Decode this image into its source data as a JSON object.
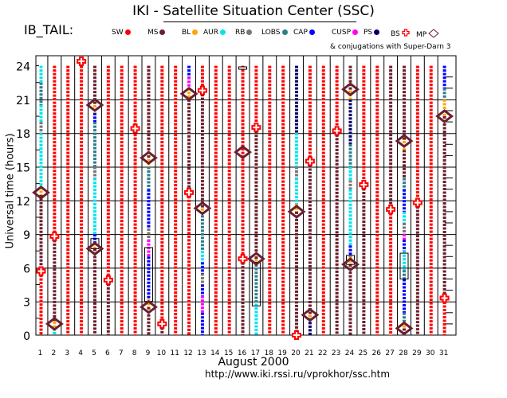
{
  "header": {
    "title": "IKI - Satellite Situation Center (SSC)",
    "series_label": "IB_TAIL:",
    "conjugation_note": "& conjugations with Super-Darn 3"
  },
  "legend": [
    {
      "label": "SW",
      "color": "#ff0000",
      "shape": "dot"
    },
    {
      "label": "MS",
      "color": "#6b1f2e",
      "shape": "dot"
    },
    {
      "label": "BL",
      "color": "#ffa500",
      "shape": "dot"
    },
    {
      "label": "AUR",
      "color": "#00e5ee",
      "shape": "dot"
    },
    {
      "label": "RB",
      "color": "#777777",
      "shape": "dot"
    },
    {
      "label": "LOBS",
      "color": "#2e7d8c",
      "shape": "dot"
    },
    {
      "label": "CAP",
      "color": "#0000ff",
      "shape": "dot"
    },
    {
      "label": "CUSP",
      "color": "#ff00ff",
      "shape": "dot"
    },
    {
      "label": "PS",
      "color": "#000066",
      "shape": "dot"
    },
    {
      "label": "BS",
      "color": "#ff0000",
      "shape": "cross"
    },
    {
      "label": "MP",
      "color": "#6b1f2e",
      "shape": "diamond"
    }
  ],
  "chart_data": {
    "type": "scatter",
    "title": "IKI - Satellite Situation Center (SSC)",
    "xlabel": "August   2000",
    "ylabel": "Universal time (hours)",
    "footer": "http://www.iki.rssi.ru/vprokhor/ssc.htm",
    "xlim": [
      1,
      31
    ],
    "ylim": [
      0,
      24
    ],
    "x_ticks": [
      "1",
      "2",
      "3",
      "4",
      "5",
      "6",
      "7",
      "8",
      "9",
      "10",
      "11",
      "12",
      "13",
      "14",
      "15",
      "16",
      "17",
      "18",
      "19",
      "20",
      "21",
      "22",
      "23",
      "24",
      "25",
      "26",
      "27",
      "28",
      "29",
      "30",
      "31"
    ],
    "y_ticks": [
      "0",
      "3",
      "6",
      "9",
      "12",
      "15",
      "18",
      "21",
      "24"
    ],
    "grid": true,
    "region_colors": {
      "SW": "#ff0000",
      "MS": "#6b1f2e",
      "BL": "#ffa500",
      "AUR": "#00e5ee",
      "RB": "#777777",
      "LOBS": "#2e7d8c",
      "CAP": "#0000ff",
      "CUSP": "#ff00ff",
      "PS": "#000066"
    },
    "days": [
      {
        "day": 1,
        "segments": [
          [
            "SW",
            0,
            5.7
          ],
          [
            "MS",
            5.7,
            12.5
          ],
          [
            "BL",
            12.5,
            13.2
          ],
          [
            "AUR",
            13.2,
            18
          ],
          [
            "RB",
            18,
            19
          ],
          [
            "AUR",
            19,
            20.5
          ],
          [
            "LOBS",
            20.5,
            22.5
          ],
          [
            "AUR",
            22.5,
            24
          ]
        ],
        "bs": [
          5.7
        ],
        "mp": [
          12.7
        ]
      },
      {
        "day": 2,
        "segments": [
          [
            "AUR",
            0,
            0.6
          ],
          [
            "BL",
            0.6,
            1.2
          ],
          [
            "MS",
            1.2,
            8.8
          ],
          [
            "SW",
            8.8,
            24
          ]
        ],
        "bs": [
          8.8
        ],
        "mp": [
          1
        ]
      },
      {
        "day": 3,
        "segments": [
          [
            "SW",
            0,
            24
          ]
        ],
        "bs": [],
        "mp": []
      },
      {
        "day": 4,
        "segments": [
          [
            "SW",
            0,
            24
          ]
        ],
        "bs": [
          24.4
        ],
        "mp": []
      },
      {
        "day": 5,
        "segments": [
          [
            "MS",
            0,
            7.7
          ],
          [
            "BL",
            7.7,
            8.2
          ],
          [
            "CAP",
            8.2,
            9
          ],
          [
            "AUR",
            9,
            14
          ],
          [
            "RB",
            14,
            15
          ],
          [
            "LOBS",
            15,
            19
          ],
          [
            "CAP",
            19,
            19.8
          ],
          [
            "BL",
            19.8,
            20.5
          ],
          [
            "MS",
            20.5,
            24
          ]
        ],
        "bs": [],
        "mp": [
          7.7,
          20.5
        ],
        "boxes": [
          [
            7.7,
            8.6
          ]
        ]
      },
      {
        "day": 6,
        "segments": [
          [
            "MS",
            0,
            4.9
          ],
          [
            "SW",
            4.9,
            24
          ]
        ],
        "bs": [
          4.9
        ],
        "mp": []
      },
      {
        "day": 7,
        "segments": [
          [
            "SW",
            0,
            24
          ]
        ],
        "bs": [],
        "mp": []
      },
      {
        "day": 8,
        "segments": [
          [
            "SW",
            0,
            24
          ]
        ],
        "bs": [
          18.4
        ],
        "mp": []
      },
      {
        "day": 9,
        "segments": [
          [
            "MS",
            0,
            2.5
          ],
          [
            "BL",
            2.5,
            3.2
          ],
          [
            "CAP",
            3.2,
            7
          ],
          [
            "CUSP",
            7,
            8.5
          ],
          [
            "RB",
            8.5,
            9.5
          ],
          [
            "CAP",
            9.5,
            13
          ],
          [
            "LOBS",
            13,
            15
          ],
          [
            "BL",
            15,
            15.7
          ],
          [
            "MS",
            15.7,
            24
          ]
        ],
        "bs": [],
        "mp": [
          2.5,
          15.8
        ],
        "boxes": [
          [
            3,
            7.8
          ]
        ]
      },
      {
        "day": 10,
        "segments": [
          [
            "MS",
            0,
            1
          ],
          [
            "SW",
            1,
            24
          ]
        ],
        "bs": [
          1
        ],
        "mp": []
      },
      {
        "day": 11,
        "segments": [
          [
            "SW",
            0,
            24
          ]
        ],
        "bs": [],
        "mp": []
      },
      {
        "day": 12,
        "segments": [
          [
            "SW",
            0,
            12.7
          ],
          [
            "MS",
            12.7,
            21
          ],
          [
            "BL",
            21,
            22
          ],
          [
            "CUSP",
            22,
            23
          ],
          [
            "CAP",
            23,
            24
          ]
        ],
        "bs": [
          12.7
        ],
        "mp": [
          21.5
        ]
      },
      {
        "day": 13,
        "segments": [
          [
            "CAP",
            0,
            2
          ],
          [
            "CUSP",
            2,
            3.5
          ],
          [
            "CAP",
            3.5,
            4.5
          ],
          [
            "RB",
            4.5,
            5.5
          ],
          [
            "CAP",
            5.5,
            6.5
          ],
          [
            "AUR",
            6.5,
            7.5
          ],
          [
            "LOBS",
            7.5,
            11
          ],
          [
            "BL",
            11,
            11.3
          ],
          [
            "MS",
            11.3,
            21.8
          ],
          [
            "SW",
            21.8,
            24
          ]
        ],
        "bs": [
          21.8
        ],
        "mp": [
          11.3
        ]
      },
      {
        "day": 14,
        "segments": [
          [
            "SW",
            0,
            24
          ]
        ],
        "bs": [],
        "mp": []
      },
      {
        "day": 15,
        "segments": [
          [
            "SW",
            0,
            24
          ]
        ],
        "bs": [],
        "mp": []
      },
      {
        "day": 16,
        "segments": [
          [
            "MS",
            0,
            6.8
          ],
          [
            "SW",
            6.8,
            24
          ]
        ],
        "bs": [
          6.8
        ],
        "mp": [
          16.3
        ]
      },
      {
        "day": 16,
        "segments": [
          [
            "MS",
            0,
            6.8
          ],
          [
            "SW",
            6.8,
            24
          ]
        ],
        "bs": [],
        "mp": []
      },
      {
        "day": 17,
        "segments": [
          [
            "AUR",
            0,
            2.8
          ],
          [
            "LOBS",
            2.8,
            6.3
          ],
          [
            "BL",
            6.3,
            6.8
          ],
          [
            "MS",
            6.8,
            18.5
          ],
          [
            "SW",
            18.5,
            24
          ]
        ],
        "bs": [
          18.5
        ],
        "mp": [
          6.8
        ],
        "boxes": [
          [
            2.6,
            6.5
          ]
        ]
      },
      {
        "day": 18,
        "segments": [
          [
            "SW",
            0,
            24
          ]
        ],
        "bs": [],
        "mp": []
      },
      {
        "day": 19,
        "segments": [
          [
            "SW",
            0,
            24
          ]
        ],
        "bs": [],
        "mp": []
      },
      {
        "day": 20,
        "segments": [
          [
            "SW",
            0,
            0
          ],
          [
            "MS",
            0,
            11
          ],
          [
            "BL",
            11,
            11.7
          ],
          [
            "AUR",
            11.7,
            14
          ],
          [
            "RB",
            14,
            15
          ],
          [
            "AUR",
            15,
            18
          ],
          [
            "PS",
            18,
            24
          ]
        ],
        "bs": [
          0
        ],
        "mp": [
          11
        ]
      },
      {
        "day": 21,
        "segments": [
          [
            "PS",
            0,
            1.5
          ],
          [
            "BL",
            1.5,
            1.8
          ],
          [
            "MS",
            1.8,
            15.5
          ],
          [
            "SW",
            15.5,
            24
          ]
        ],
        "bs": [
          15.5
        ],
        "mp": [
          1.8
        ]
      },
      {
        "day": 22,
        "segments": [
          [
            "SW",
            0,
            24
          ]
        ],
        "bs": [],
        "mp": []
      },
      {
        "day": 23,
        "segments": [
          [
            "MS",
            0,
            18.2
          ],
          [
            "SW",
            18.2,
            24
          ]
        ],
        "bs": [
          18.2
        ],
        "mp": []
      },
      {
        "day": 24,
        "segments": [
          [
            "MS",
            0,
            6.3
          ],
          [
            "BL",
            6.3,
            7
          ],
          [
            "CAP",
            7,
            8
          ],
          [
            "AUR",
            8,
            13
          ],
          [
            "RB",
            13,
            13.8
          ],
          [
            "AUR",
            13.8,
            15
          ],
          [
            "LOBS",
            15,
            17
          ],
          [
            "PS",
            17,
            21
          ],
          [
            "BL",
            21,
            21.8
          ],
          [
            "MS",
            21.8,
            24
          ]
        ],
        "bs": [],
        "mp": [
          6.3,
          21.9
        ],
        "boxes": [
          [
            6.3,
            7.1
          ]
        ]
      },
      {
        "day": 25,
        "segments": [
          [
            "MS",
            0,
            13.4
          ],
          [
            "SW",
            13.4,
            24
          ]
        ],
        "bs": [
          13.4
        ],
        "mp": []
      },
      {
        "day": 26,
        "segments": [
          [
            "SW",
            0,
            24
          ]
        ],
        "bs": [],
        "mp": []
      },
      {
        "day": 27,
        "segments": [
          [
            "SW",
            0,
            11.2
          ],
          [
            "MS",
            11.2,
            24
          ]
        ],
        "bs": [
          11.2
        ],
        "mp": []
      },
      {
        "day": 28,
        "segments": [
          [
            "MS",
            0,
            0.6
          ],
          [
            "BL",
            0.6,
            1.2
          ],
          [
            "LOBS",
            1.2,
            2
          ],
          [
            "CAP",
            2,
            5
          ],
          [
            "LOBS",
            5,
            5.8
          ],
          [
            "AUR",
            5.8,
            7.5
          ],
          [
            "CAP",
            7.5,
            8.5
          ],
          [
            "CUSP",
            8.5,
            9
          ],
          [
            "RB",
            9,
            10
          ],
          [
            "AUR",
            10,
            11
          ],
          [
            "CAP",
            11,
            13
          ],
          [
            "LOBS",
            13,
            14
          ],
          [
            "MS",
            14,
            16.5
          ],
          [
            "BL",
            16.5,
            17.3
          ],
          [
            "MS",
            17.3,
            24
          ]
        ],
        "bs": [],
        "mp": [
          0.6,
          17.3
        ],
        "boxes": [
          [
            5,
            7.3
          ]
        ]
      },
      {
        "day": 29,
        "segments": [
          [
            "MS",
            0,
            11.8
          ],
          [
            "SW",
            11.8,
            24
          ]
        ],
        "bs": [
          11.8
        ],
        "mp": []
      },
      {
        "day": 30,
        "segments": [
          [
            "SW",
            0,
            24
          ]
        ],
        "bs": [],
        "mp": []
      },
      {
        "day": 31,
        "segments": [
          [
            "SW",
            0,
            3.3
          ],
          [
            "MS",
            3.3,
            19.5
          ],
          [
            "BL",
            19.5,
            21
          ],
          [
            "LOBS",
            21,
            22
          ],
          [
            "CAP",
            22,
            24
          ]
        ],
        "bs": [
          3.3
        ],
        "mp": [
          19.5
        ]
      }
    ]
  }
}
